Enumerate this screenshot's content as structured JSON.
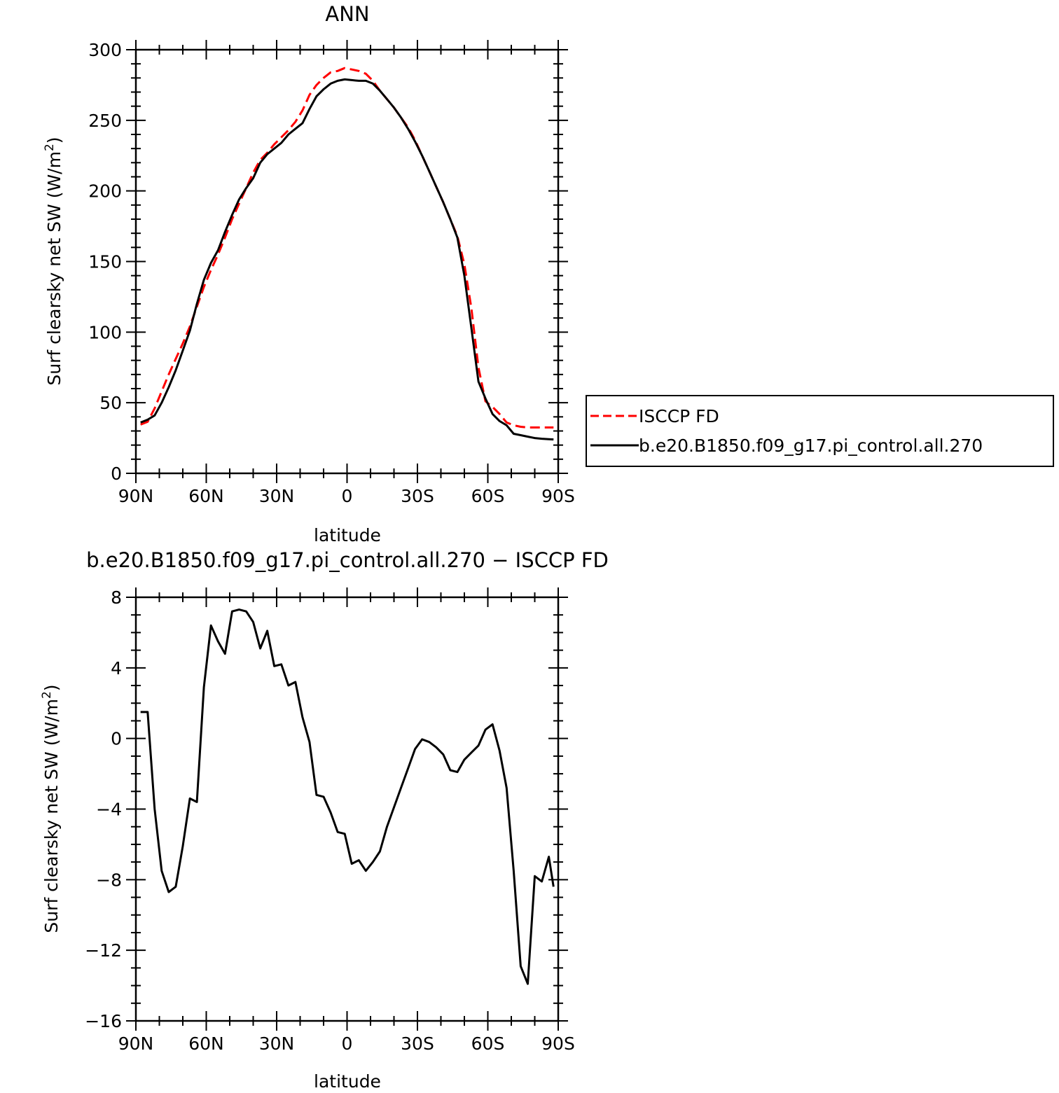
{
  "chart_data": [
    {
      "type": "line",
      "title": "ANN",
      "xlabel": "latitude",
      "ylabel_main": "Surf clearsky net SW (W/m",
      "ylabel_sup": "2",
      "ylabel_tail": ")",
      "xlim": [
        90,
        -90
      ],
      "ylim": [
        0,
        300
      ],
      "x_ticks": [
        90,
        60,
        30,
        0,
        -30,
        -60,
        -90
      ],
      "x_tick_labels": [
        "90N",
        "60N",
        "30N",
        "0",
        "30S",
        "60S",
        "90S"
      ],
      "y_ticks": [
        0,
        50,
        100,
        150,
        200,
        250,
        300
      ],
      "y_tick_labels": [
        "0",
        "50",
        "100",
        "150",
        "200",
        "250",
        "300"
      ],
      "grid": false,
      "legend_position": "right",
      "series": [
        {
          "name": "ISCCP FD",
          "color": "#ff0000",
          "style": "dashed",
          "x": [
            88,
            85,
            82,
            79,
            76,
            73,
            70,
            67,
            64,
            61,
            58,
            55,
            52,
            49,
            46,
            43,
            40,
            37,
            34,
            31,
            28,
            25,
            22,
            19,
            16,
            13,
            10,
            7,
            4,
            1,
            -2,
            -5,
            -8,
            -11,
            -14,
            -17,
            -20,
            -23,
            -26,
            -29,
            -32,
            -35,
            -38,
            -41,
            -44,
            -47,
            -50,
            -53,
            -56,
            -59,
            -62,
            -65,
            -68,
            -71,
            -74,
            -77,
            -80,
            -83,
            -86,
            -88
          ],
          "y": [
            34.5,
            36.5,
            46,
            58,
            70,
            81,
            92,
            104,
            118,
            132,
            144,
            155,
            167,
            180,
            191,
            202,
            213,
            222,
            227,
            233,
            238,
            243,
            249,
            257,
            268,
            275,
            280,
            284,
            285,
            287,
            286,
            285,
            283,
            278,
            271,
            265,
            259,
            252,
            245,
            236,
            225,
            214,
            203,
            192,
            180,
            168,
            148,
            117,
            75,
            51,
            47,
            42,
            36,
            34,
            33,
            32.5,
            32.5,
            32.5,
            32.5,
            32.5
          ]
        },
        {
          "name": "b.e20.B1850.f09_g17.pi_control.all.270",
          "color": "#000000",
          "style": "solid",
          "x": [
            88,
            85,
            82,
            79,
            76,
            73,
            70,
            67,
            64,
            61,
            58,
            55,
            52,
            49,
            46,
            43,
            40,
            37,
            34,
            31,
            28,
            25,
            22,
            19,
            16,
            13,
            10,
            7,
            4,
            1,
            -2,
            -5,
            -8,
            -11,
            -14,
            -17,
            -20,
            -23,
            -26,
            -29,
            -32,
            -35,
            -38,
            -41,
            -44,
            -47,
            -50,
            -53,
            -56,
            -59,
            -62,
            -65,
            -68,
            -71,
            -74,
            -77,
            -80,
            -83,
            -86,
            -88
          ],
          "y": [
            36,
            38,
            41,
            50,
            61,
            73,
            87,
            101,
            120,
            137,
            149,
            158,
            171,
            183,
            194,
            202,
            209,
            220,
            226,
            230,
            234,
            240,
            244,
            248,
            258,
            267,
            272,
            276,
            278,
            279,
            278.5,
            278,
            278,
            276,
            271,
            265,
            259,
            252,
            244,
            235,
            225,
            214,
            203,
            192,
            180,
            167,
            140,
            103,
            65,
            53,
            42,
            37,
            34,
            28,
            27,
            26,
            25,
            24.5,
            24.2,
            24
          ]
        }
      ]
    },
    {
      "type": "line",
      "title": "b.e20.B1850.f09_g17.pi_control.all.270 − ISCCP FD",
      "xlabel": "latitude",
      "ylabel_main": "Surf clearsky net SW (W/m",
      "ylabel_sup": "2",
      "ylabel_tail": ")",
      "xlim": [
        90,
        -90
      ],
      "ylim": [
        -16,
        8
      ],
      "x_ticks": [
        90,
        60,
        30,
        0,
        -30,
        -60,
        -90
      ],
      "x_tick_labels": [
        "90N",
        "60N",
        "30N",
        "0",
        "30S",
        "60S",
        "90S"
      ],
      "y_ticks": [
        8,
        4,
        0,
        -4,
        -8,
        -12,
        -16
      ],
      "y_tick_labels": [
        "8",
        "4",
        "0",
        "−4",
        "−8",
        "−12",
        "−16"
      ],
      "grid": false,
      "series": [
        {
          "color": "#000000",
          "style": "solid",
          "x": [
            88,
            85,
            82,
            79,
            76,
            73,
            70,
            67,
            64,
            61,
            58,
            55,
            52,
            49,
            46,
            43,
            40,
            37,
            34,
            31,
            28,
            25,
            22,
            19,
            16,
            13,
            10,
            7,
            4,
            1,
            -2,
            -5,
            -8,
            -11,
            -14,
            -17,
            -20,
            -23,
            -26,
            -29,
            -32,
            -35,
            -38,
            -41,
            -44,
            -47,
            -50,
            -53,
            -56,
            -59,
            -62,
            -65,
            -68,
            -71,
            -74,
            -77,
            -80,
            -83,
            -86,
            -88
          ],
          "y": [
            1.5,
            1.5,
            -4.0,
            -7.5,
            -8.7,
            -8.4,
            -6.1,
            -3.4,
            -3.6,
            2.9,
            6.4,
            5.5,
            4.8,
            7.2,
            7.3,
            7.2,
            6.6,
            5.1,
            6.1,
            4.1,
            4.2,
            3.0,
            3.2,
            1.2,
            -0.2,
            -3.2,
            -3.3,
            -4.2,
            -5.3,
            -5.4,
            -7.1,
            -6.9,
            -7.5,
            -7.0,
            -6.4,
            -5.0,
            -3.9,
            -2.8,
            -1.7,
            -0.6,
            -0.05,
            -0.2,
            -0.5,
            -0.9,
            -1.8,
            -1.9,
            -1.2,
            -0.8,
            -0.4,
            0.5,
            0.8,
            -0.7,
            -2.8,
            -7.5,
            -12.9,
            -13.9,
            -7.8,
            -8.1,
            -6.7,
            -8.4
          ]
        }
      ]
    }
  ]
}
